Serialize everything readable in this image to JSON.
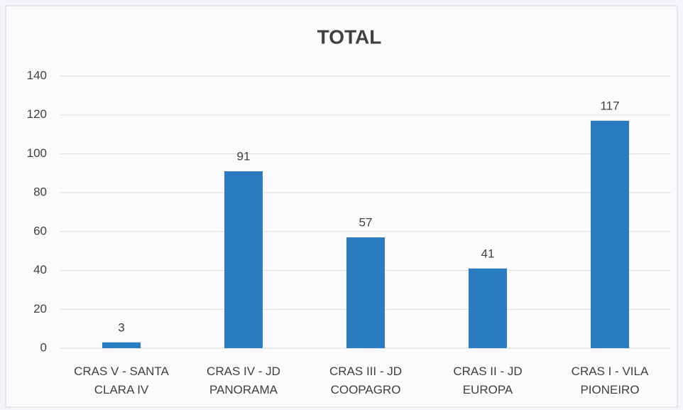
{
  "chart_data": {
    "type": "bar",
    "title": "TOTAL",
    "categories": [
      "CRAS V - SANTA CLARA IV",
      "CRAS IV - JD PANORAMA",
      "CRAS III - JD COOPAGRO",
      "CRAS II - JD EUROPA",
      "CRAS I - VILA PIONEIRO"
    ],
    "values": [
      3,
      91,
      57,
      41,
      117
    ],
    "color": "#2a7bc0",
    "ylim": [
      0,
      140
    ],
    "yticks": [
      0,
      20,
      40,
      60,
      80,
      100,
      120,
      140
    ],
    "grid": true
  }
}
